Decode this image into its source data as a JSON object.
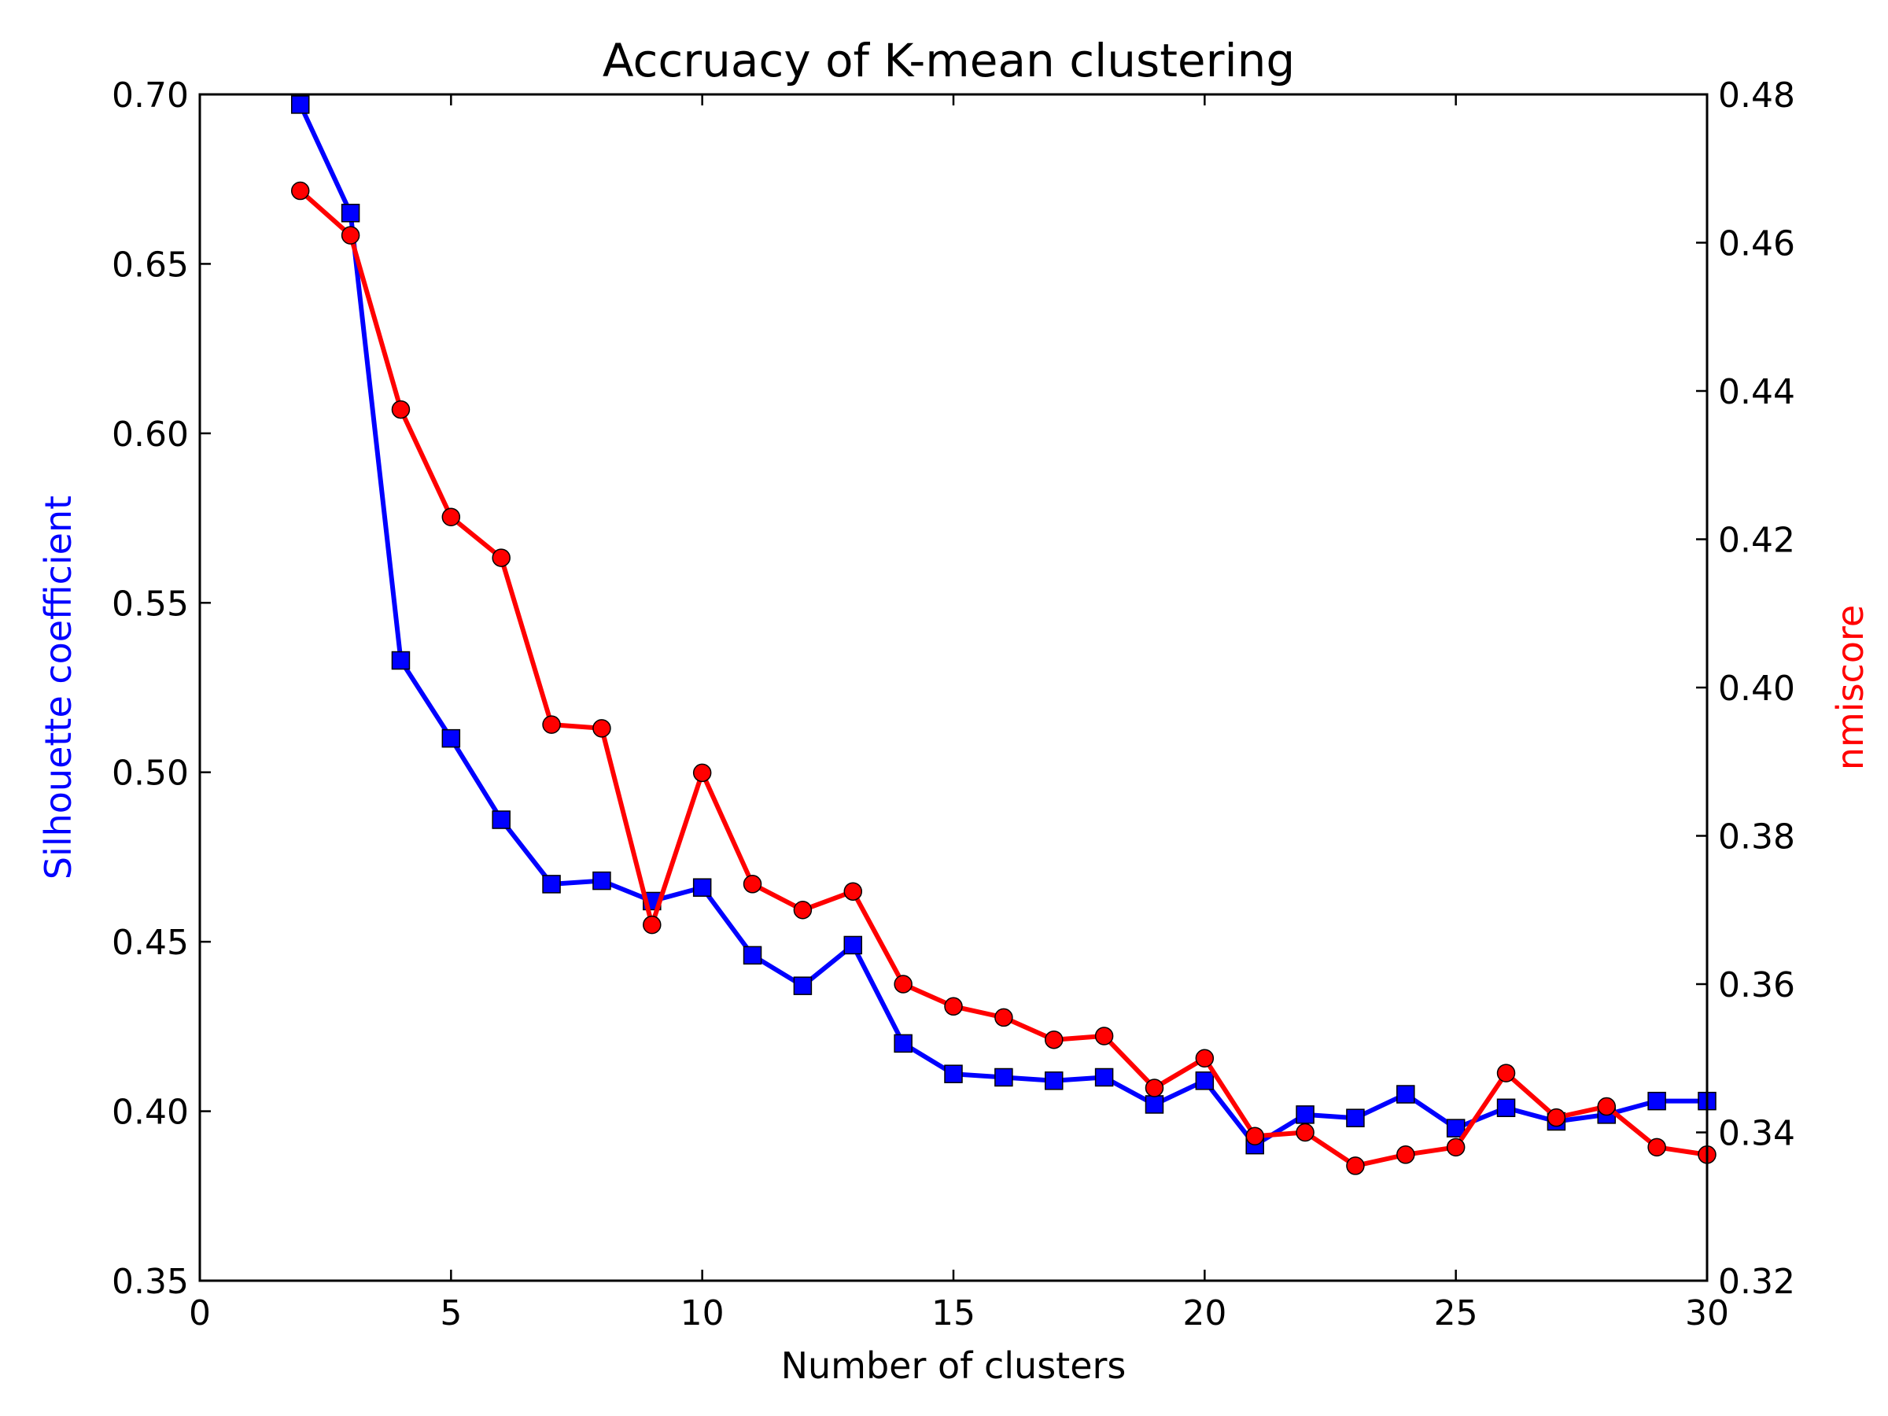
{
  "chart_data": {
    "type": "line",
    "title": "Accruacy of K-mean clustering",
    "xlabel": "Number of clusters",
    "ylabel_left": "Silhouette coefficient",
    "ylabel_right": "nmiscore",
    "xlim": [
      0,
      30
    ],
    "ylim_left": [
      0.35,
      0.7
    ],
    "ylim_right": [
      0.32,
      0.48
    ],
    "x_ticks": [
      "0",
      "5",
      "10",
      "15",
      "20",
      "25",
      "30"
    ],
    "y_left_ticks": [
      "0.35",
      "0.40",
      "0.45",
      "0.50",
      "0.55",
      "0.60",
      "0.65",
      "0.70"
    ],
    "y_right_ticks": [
      "0.32",
      "0.34",
      "0.36",
      "0.38",
      "0.40",
      "0.42",
      "0.44",
      "0.46",
      "0.48"
    ],
    "grid": false,
    "x": [
      2,
      3,
      4,
      5,
      6,
      7,
      8,
      9,
      10,
      11,
      12,
      13,
      14,
      15,
      16,
      17,
      18,
      19,
      20,
      21,
      22,
      23,
      24,
      25,
      26,
      27,
      28,
      29,
      30
    ],
    "series": [
      {
        "axis": "left",
        "color": "#0000ff",
        "marker": "square",
        "values": [
          0.697,
          0.665,
          0.533,
          0.51,
          0.486,
          0.467,
          0.468,
          0.462,
          0.466,
          0.446,
          0.437,
          0.449,
          0.42,
          0.411,
          0.41,
          0.409,
          0.41,
          0.402,
          0.409,
          0.39,
          0.399,
          0.398,
          0.405,
          0.395,
          0.401,
          0.397,
          0.399,
          0.403,
          0.403
        ]
      },
      {
        "axis": "right",
        "color": "#ff0000",
        "marker": "circle",
        "values": [
          0.467,
          0.461,
          0.4375,
          0.423,
          0.4175,
          0.395,
          0.3945,
          0.368,
          0.3885,
          0.3735,
          0.37,
          0.3725,
          0.36,
          0.357,
          0.3555,
          0.3525,
          0.353,
          0.346,
          0.35,
          0.3395,
          0.34,
          0.3355,
          0.337,
          0.338,
          0.348,
          0.342,
          0.3435,
          0.338,
          0.337
        ]
      }
    ]
  }
}
